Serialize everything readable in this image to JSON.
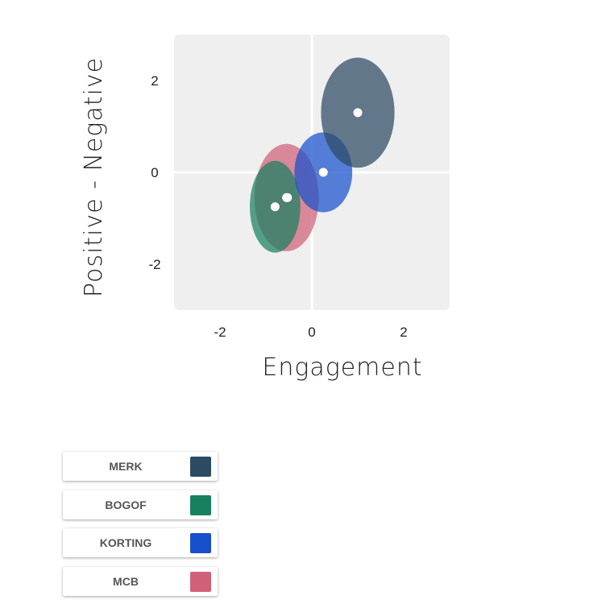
{
  "chart_data": {
    "type": "scatter",
    "xlabel": "Engagement",
    "ylabel": "Positive - Negative",
    "xlim": [
      -3,
      3
    ],
    "ylim": [
      -3,
      3
    ],
    "xticks": [
      "-2",
      "0",
      "2"
    ],
    "yticks": [
      "2",
      "0",
      "-2"
    ],
    "grid": "zero-lines",
    "series": [
      {
        "name": "MERK",
        "color": "#2b4a63",
        "x": 1.0,
        "y": 1.3,
        "rx": 0.8,
        "ry": 1.2
      },
      {
        "name": "BOGOF",
        "color": "#17805f",
        "x": -0.8,
        "y": -0.75,
        "rx": 0.55,
        "ry": 1.0
      },
      {
        "name": "KORTING",
        "color": "#1650cc",
        "x": 0.25,
        "y": 0.0,
        "rx": 0.63,
        "ry": 0.87
      },
      {
        "name": "MCB",
        "color": "#d06078",
        "x": -0.55,
        "y": -0.55,
        "rx": 0.7,
        "ry": 1.17
      }
    ],
    "overlap_point": {
      "x": -0.53,
      "y": -0.55
    }
  },
  "legend": {
    "items": [
      {
        "label": "MERK",
        "color": "#2b4a63"
      },
      {
        "label": "BOGOF",
        "color": "#17805f"
      },
      {
        "label": "KORTING",
        "color": "#1650cc"
      },
      {
        "label": "MCB",
        "color": "#d06078"
      }
    ]
  }
}
